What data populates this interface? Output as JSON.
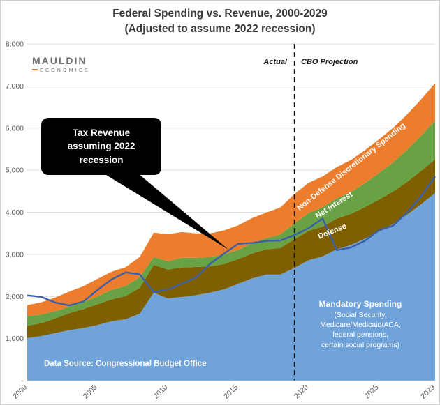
{
  "title": {
    "line1": "Federal Spending vs. Revenue, 2000-2029",
    "line2": "(Adjusted to assume 2022 recession)"
  },
  "logo": {
    "line1": "MAULDIN",
    "line2": "ECONOMICS"
  },
  "annotations": {
    "actual": "Actual",
    "cbo": "CBO Projection",
    "callout": "Tax Revenue assuming 2022 recession",
    "band_nondefense": "Non-Defense Discretionary Spending",
    "band_net_interest": "Net Interest",
    "band_defense": "Defense",
    "mandatory_title": "Mandatory Spending",
    "mandatory_lines": [
      "(Social Security,",
      "Medicare/Medicaid/ACA,",
      "federal pensions,",
      "certain social programs)"
    ],
    "data_source": "Data Source: Congressional Budget Office"
  },
  "chart_data": {
    "type": "area",
    "stacked": true,
    "title": "Federal Spending vs. Revenue, 2000-2029 (Adjusted to assume 2022 recession)",
    "xlabel": "",
    "ylabel": "",
    "grid": true,
    "legend_position": "inline-band-labels",
    "xlim": [
      2000,
      2029
    ],
    "ylim": [
      0,
      8000
    ],
    "ytick_step": 1000,
    "zero_label": "-",
    "x_ticks": [
      2000,
      2005,
      2010,
      2015,
      2020,
      2025,
      2029
    ],
    "divider_year": 2019,
    "x": [
      2000,
      2001,
      2002,
      2003,
      2004,
      2005,
      2006,
      2007,
      2008,
      2009,
      2010,
      2011,
      2012,
      2013,
      2014,
      2015,
      2016,
      2017,
      2018,
      2019,
      2020,
      2021,
      2022,
      2023,
      2024,
      2025,
      2026,
      2027,
      2028,
      2029
    ],
    "series": [
      {
        "name": "Mandatory Spending",
        "color": "#6fa3da",
        "values": [
          1010,
          1060,
          1130,
          1200,
          1250,
          1320,
          1410,
          1460,
          1590,
          2090,
          1950,
          1990,
          2030,
          2090,
          2170,
          2300,
          2430,
          2520,
          2520,
          2680,
          2860,
          2950,
          3120,
          3220,
          3370,
          3540,
          3720,
          3940,
          4190,
          4460
        ]
      },
      {
        "name": "Defense",
        "color": "#7f6000",
        "values": [
          295,
          305,
          350,
          405,
          455,
          495,
          520,
          550,
          615,
          660,
          690,
          700,
          670,
          625,
          600,
          585,
          595,
          600,
          630,
          680,
          700,
          710,
          730,
          740,
          750,
          760,
          770,
          780,
          790,
          800
        ]
      },
      {
        "name": "Net Interest",
        "color": "#69a244",
        "values": [
          222,
          206,
          170,
          153,
          160,
          184,
          227,
          237,
          253,
          187,
          196,
          230,
          220,
          221,
          229,
          223,
          240,
          263,
          325,
          375,
          420,
          460,
          480,
          520,
          570,
          630,
          690,
          760,
          840,
          920
        ]
      },
      {
        "name": "Non-Defense Discretionary Spending",
        "color": "#ec7d2d",
        "values": [
          265,
          290,
          325,
          360,
          380,
          420,
          430,
          450,
          480,
          580,
          640,
          610,
          580,
          560,
          570,
          580,
          600,
          610,
          640,
          700,
          720,
          730,
          740,
          760,
          780,
          800,
          820,
          840,
          860,
          890
        ]
      }
    ],
    "revenue": {
      "name": "Tax Revenue assuming 2022 recession",
      "color": "#3a5fa8",
      "values": [
        2025,
        1990,
        1855,
        1785,
        1880,
        2155,
        2405,
        2570,
        2525,
        2105,
        2165,
        2305,
        2450,
        2775,
        3020,
        3250,
        3270,
        3320,
        3330,
        3460,
        3620,
        3850,
        3100,
        3160,
        3320,
        3570,
        3680,
        3990,
        4380,
        4850
      ]
    }
  }
}
